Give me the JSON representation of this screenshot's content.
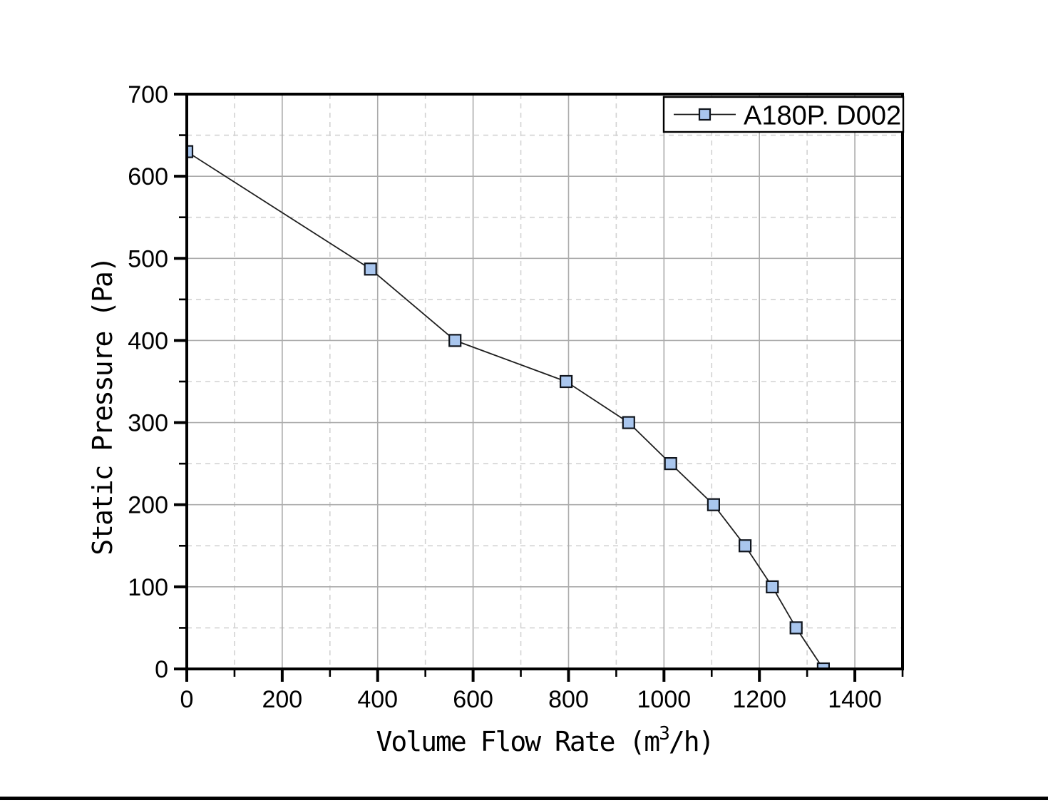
{
  "page": {
    "background_color": "#ffffff",
    "bottom_edge_color": "#000000"
  },
  "chart_data": {
    "type": "line",
    "title": "",
    "xlabel": "Volume Flow Rate (m³/h)",
    "xlabel_rich": {
      "base": "Volume Flow Rate (m",
      "superscript": "3",
      "suffix": "/h)"
    },
    "ylabel": "Static Pressure (Pa)",
    "xlim": [
      0,
      1500
    ],
    "ylim": [
      0,
      700
    ],
    "x_ticks_major": [
      0,
      200,
      400,
      600,
      800,
      1000,
      1200,
      1400
    ],
    "x_tick_minor_step": 100,
    "y_ticks_major": [
      0,
      100,
      200,
      300,
      400,
      500,
      600,
      700
    ],
    "y_tick_minor_step": 50,
    "grid": {
      "major_style": "solid",
      "minor_style": "dashed",
      "on": true
    },
    "legend": {
      "position": "top-right",
      "entries": [
        "A180P. D002"
      ]
    },
    "series": [
      {
        "name": "A180P. D002",
        "marker": "square",
        "points": [
          [
            0,
            630
          ],
          [
            385,
            487
          ],
          [
            562,
            400
          ],
          [
            795,
            350
          ],
          [
            926,
            300
          ],
          [
            1014,
            250
          ],
          [
            1104,
            200
          ],
          [
            1170,
            150
          ],
          [
            1227,
            100
          ],
          [
            1277,
            50
          ],
          [
            1334,
            0
          ]
        ]
      }
    ],
    "colors": {
      "axis": "#000000",
      "grid_major": "#ababab",
      "grid_minor": "#d2d2d2",
      "series_line": "#1f1f1f",
      "marker_fill": "#a9c6ee",
      "marker_stroke": "#10151d",
      "legend_border": "#000000",
      "legend_background": "#ffffff",
      "text": "#000000"
    }
  }
}
